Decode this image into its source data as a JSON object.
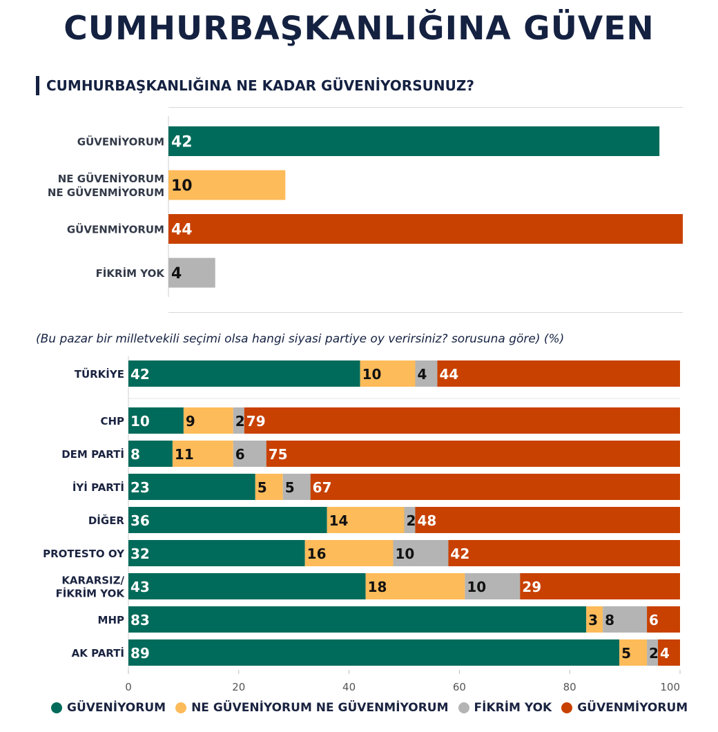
{
  "title": "CUMHURBAŞKANLIĞINA GÜVEN",
  "section_title": "CUMHURBAŞKANLIĞINA NE KADAR GÜVENİYORSUNUZ?",
  "subtitle": "(Bu pazar bir milletvekili seçimi olsa hangi siyasi partiye oy verirsiniz? sorusuna göre) (%)",
  "colors": {
    "guveniyorum": "#006b5a",
    "kararsiz": "#fdbb5a",
    "fikrim_yok": "#b4b4b4",
    "guvenmiyorum": "#c84100"
  },
  "chart_data": [
    {
      "type": "bar",
      "orientation": "horizontal",
      "title": "CUMHURBAŞKANLIĞINA NE KADAR GÜVENİYORSUNUZ?",
      "categories": [
        [
          "GÜVENİYORUM"
        ],
        [
          "NE GÜVENİYORUM",
          "NE GÜVENMİYORUM"
        ],
        [
          "GÜVENMİYORUM"
        ],
        [
          "FİKRİM YOK"
        ]
      ],
      "values": [
        42,
        10,
        44,
        4
      ],
      "colors": [
        "#006b5a",
        "#fdbb5a",
        "#c84100",
        "#b4b4b4"
      ],
      "xlim": [
        0,
        44
      ]
    },
    {
      "type": "bar",
      "orientation": "horizontal",
      "stacked": true,
      "title": "(Bu pazar bir milletvekili seçimi olsa hangi siyasi partiye oy verirsiniz? sorusuna göre) (%)",
      "categories": [
        [
          "TÜRKİYE"
        ],
        [
          "CHP"
        ],
        [
          "DEM PARTİ"
        ],
        [
          "İYİ PARTİ"
        ],
        [
          "DİĞER"
        ],
        [
          "PROTESTO OY"
        ],
        [
          "KARARSIZ/",
          "FİKRİM YOK"
        ],
        [
          "MHP"
        ],
        [
          "AK PARTİ"
        ]
      ],
      "series": [
        {
          "name": "GÜVENİYORUM",
          "color": "#006b5a",
          "values": [
            42,
            10,
            8,
            23,
            36,
            32,
            43,
            83,
            89
          ]
        },
        {
          "name": "NE GÜVENİYORUM NE GÜVENMİYORUM",
          "color": "#fdbb5a",
          "values": [
            10,
            9,
            11,
            5,
            14,
            16,
            18,
            3,
            5
          ]
        },
        {
          "name": "FİKRİM YOK",
          "color": "#b4b4b4",
          "values": [
            4,
            2,
            6,
            5,
            2,
            10,
            10,
            8,
            2
          ]
        },
        {
          "name": "GÜVENMİYORUM",
          "color": "#c84100",
          "values": [
            44,
            79,
            75,
            67,
            48,
            42,
            29,
            6,
            4
          ]
        }
      ],
      "xlim": [
        0,
        100
      ],
      "xticks": [
        "0",
        "20",
        "40",
        "60",
        "80",
        "100"
      ],
      "legend": "bottom"
    }
  ]
}
